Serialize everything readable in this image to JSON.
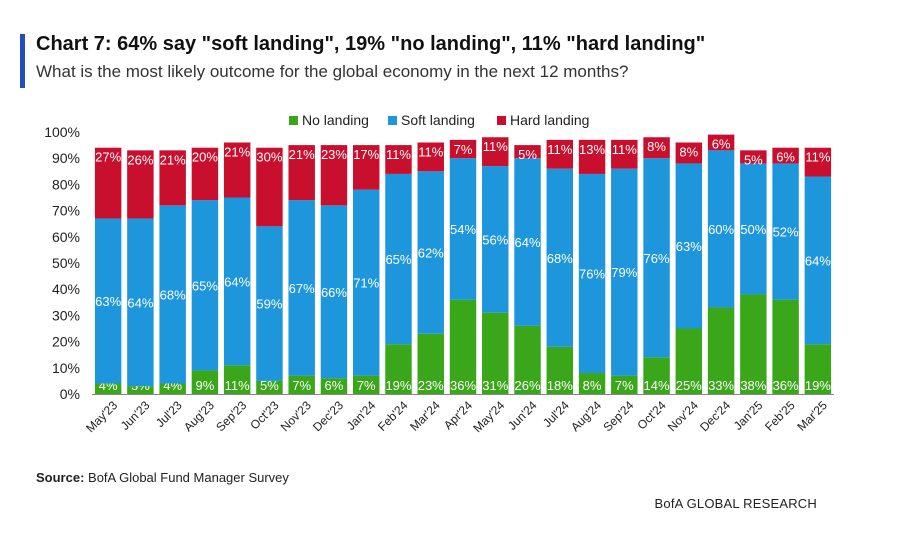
{
  "header": {
    "title": "Chart 7: 64% say \"soft landing\", 19% \"no landing\", 11% \"hard landing\"",
    "subtitle": "What is the most likely outcome for the global economy in the next 12 months?"
  },
  "colors": {
    "accent": "#1f4fbd",
    "no_landing": "#3aa61a",
    "soft_landing": "#1e96dc",
    "hard_landing": "#c8102e"
  },
  "chart_data": {
    "type": "bar",
    "stacked": true,
    "categories": [
      "May'23",
      "Jun'23",
      "Jul'23",
      "Aug'23",
      "Sep'23",
      "Oct'23",
      "Nov'23",
      "Dec'23",
      "Jan'24",
      "Feb'24",
      "Mar'24",
      "Apr'24",
      "May'24",
      "Jun'24",
      "Jul'24",
      "Aug'24",
      "Sep'24",
      "Oct'24",
      "Nov'24",
      "Dec'24",
      "Jan'25",
      "Feb'25",
      "Mar'25"
    ],
    "series": [
      {
        "name": "No landing",
        "color": "#3aa61a",
        "values": [
          4,
          3,
          4,
          9,
          11,
          5,
          7,
          6,
          7,
          19,
          23,
          36,
          31,
          26,
          18,
          8,
          7,
          14,
          25,
          33,
          38,
          36,
          19
        ]
      },
      {
        "name": "Soft landing",
        "color": "#1e96dc",
        "values": [
          63,
          64,
          68,
          65,
          64,
          59,
          67,
          66,
          71,
          65,
          62,
          54,
          56,
          64,
          68,
          76,
          79,
          76,
          63,
          60,
          50,
          52,
          64
        ]
      },
      {
        "name": "Hard landing",
        "color": "#c8102e",
        "values": [
          27,
          26,
          21,
          20,
          21,
          30,
          21,
          23,
          17,
          11,
          11,
          7,
          11,
          5,
          11,
          13,
          11,
          8,
          8,
          6,
          5,
          6,
          11
        ]
      }
    ],
    "ylim": [
      0,
      100
    ],
    "yticks": [
      "0%",
      "10%",
      "20%",
      "30%",
      "40%",
      "50%",
      "60%",
      "70%",
      "80%",
      "90%",
      "100%"
    ],
    "legend_position": "top-center",
    "grid": false
  },
  "footer": {
    "source_label": "Source:",
    "source_text": " BofA Global Fund Manager Survey",
    "brand": "BofA GLOBAL RESEARCH"
  }
}
